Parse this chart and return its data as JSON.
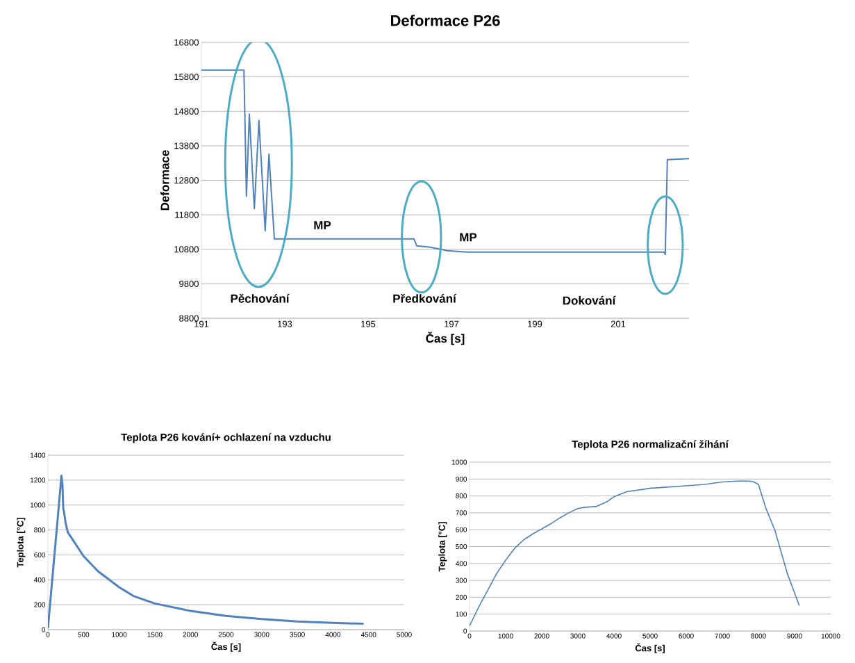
{
  "chart_data": [
    {
      "type": "line",
      "title": "Deformace P26",
      "xlabel": "Čas [s]",
      "ylabel": "Deformace",
      "x": [
        191,
        192.02,
        192.08,
        192.15,
        192.27,
        192.38,
        192.53,
        192.62,
        192.75,
        196.1,
        196.17,
        196.5,
        196.9,
        197.38,
        202.1,
        202.13,
        202.18,
        202.7
      ],
      "series": [
        {
          "color": "#4f81bd",
          "values": [
            16000,
            16000,
            12340,
            14720,
            11980,
            14540,
            11340,
            13560,
            11100,
            11100,
            10900,
            10860,
            10760,
            10720,
            10720,
            10650,
            13400,
            13430
          ]
        }
      ],
      "xlim": [
        191,
        202.7
      ],
      "xticks": [
        191,
        193,
        195,
        197,
        199,
        201
      ],
      "ylim": [
        8800,
        16800
      ],
      "yticks": [
        8800,
        9800,
        10800,
        11800,
        12800,
        13800,
        14800,
        15800,
        16800
      ],
      "grid": "y",
      "annotations": [
        "MP",
        "MP",
        "Pěchování",
        "Předkování",
        "Dokování"
      ]
    },
    {
      "type": "line",
      "title": "Teplota P26 kování+ ochlazení na vzduchu",
      "xlabel": "Čas [s]",
      "ylabel": "Teplota [°C]",
      "x": [
        0,
        190,
        205,
        215,
        225,
        250,
        280,
        350,
        500,
        700,
        1000,
        1200,
        1500,
        2000,
        2500,
        3000,
        3500,
        4000,
        4430
      ],
      "series": [
        {
          "color": "#4f81bd",
          "values": [
            10,
            1235,
            1150,
            970,
            950,
            850,
            780,
            720,
            590,
            470,
            340,
            270,
            210,
            150,
            110,
            85,
            65,
            55,
            47
          ]
        }
      ],
      "xlim": [
        0,
        5000
      ],
      "xticks": [
        0,
        500,
        1000,
        1500,
        2000,
        2500,
        3000,
        3500,
        4000,
        4500,
        5000
      ],
      "ylim": [
        0,
        1400
      ],
      "yticks": [
        0,
        200,
        400,
        600,
        800,
        1000,
        1200,
        1400
      ],
      "grid": "y"
    },
    {
      "type": "line",
      "title": "Teplota P26 normalizační žíhání",
      "xlabel": "Čas [s]",
      "ylabel": "Teplota [°C]",
      "x": [
        0,
        250,
        500,
        750,
        1000,
        1250,
        1500,
        1750,
        2000,
        2250,
        2500,
        2750,
        3000,
        3200,
        3500,
        3800,
        4000,
        4350,
        5000,
        6000,
        6500,
        7000,
        7400,
        7700,
        7850,
        8000,
        8200,
        8450,
        8800,
        9130
      ],
      "series": [
        {
          "color": "#4f81bd",
          "values": [
            30,
            140,
            240,
            340,
            420,
            490,
            540,
            575,
            605,
            635,
            670,
            700,
            725,
            733,
            737,
            765,
            795,
            825,
            845,
            860,
            868,
            883,
            888,
            888,
            885,
            868,
            730,
            600,
            340,
            150
          ]
        }
      ],
      "xlim": [
        0,
        10000
      ],
      "xticks": [
        0,
        1000,
        2000,
        3000,
        4000,
        5000,
        6000,
        7000,
        8000,
        9000,
        10000
      ],
      "ylim": [
        0,
        1000
      ],
      "yticks": [
        0,
        100,
        200,
        300,
        400,
        500,
        600,
        700,
        800,
        900,
        1000
      ],
      "grid": "y"
    }
  ]
}
